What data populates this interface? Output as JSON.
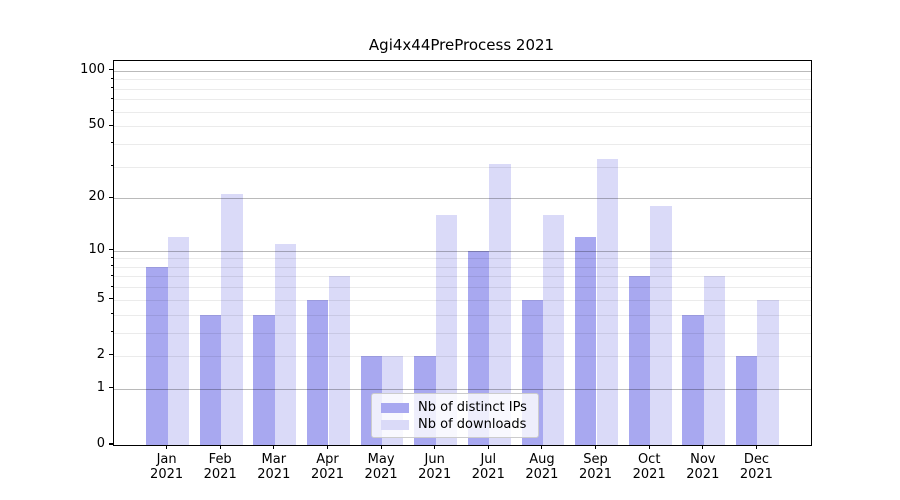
{
  "chart_data": {
    "type": "bar",
    "title": "Agi4x44PreProcess 2021",
    "categories": [
      "Jan 2021",
      "Feb 2021",
      "Mar 2021",
      "Apr 2021",
      "May 2021",
      "Jun 2021",
      "Jul 2021",
      "Aug 2021",
      "Sep 2021",
      "Oct 2021",
      "Nov 2021",
      "Dec 2021"
    ],
    "series": [
      {
        "name": "Nb of distinct IPs",
        "color": "#a8a8f0",
        "values": [
          8,
          4,
          4,
          5,
          2,
          2,
          10,
          5,
          12,
          7,
          4,
          2
        ]
      },
      {
        "name": "Nb of downloads",
        "color": "#dadaf8",
        "values": [
          12,
          21,
          11,
          7,
          2,
          16,
          31,
          16,
          33,
          18,
          7,
          5
        ]
      }
    ],
    "yscale": "log1p",
    "ylim": [
      0,
      113
    ],
    "y_ticks": [
      0,
      1,
      2,
      5,
      10,
      20,
      50,
      100
    ],
    "y_minor_ticks": [
      3,
      4,
      6,
      7,
      8,
      9,
      30,
      40,
      60,
      70,
      80,
      90
    ],
    "y_major_gridlines": [
      1,
      10,
      20,
      100
    ],
    "grid": true,
    "legend": {
      "position": "lower center",
      "entries": [
        "Nb of distinct IPs",
        "Nb of downloads"
      ]
    },
    "colors": {
      "spine": "#000000",
      "major_grid": "rgba(0,0,0,0.27)",
      "minor_grid": "rgba(0,0,0,0.08)",
      "background": "#ffffff"
    }
  }
}
